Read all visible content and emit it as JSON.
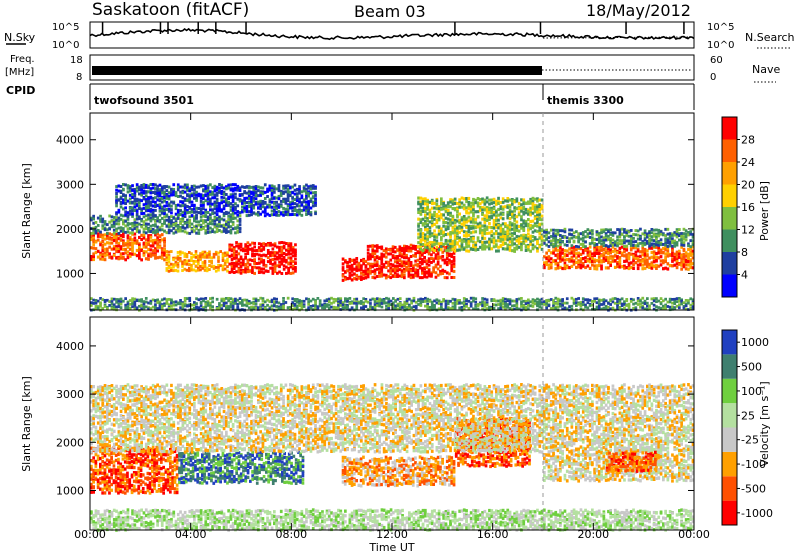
{
  "header": {
    "station": "Saskatoon (fitACF)",
    "beam": "Beam 03",
    "date": "18/May/2012"
  },
  "noise_panel": {
    "left_label": "N.Sky",
    "right_label": "N.Search",
    "tick_top": "10^5",
    "tick_bottom": "10^0"
  },
  "freq_panel": {
    "label_line1": "Freq.",
    "label_line2": "[MHz]",
    "freq_top": "18",
    "freq_bottom": "8",
    "nave_label": "Nave",
    "nave_top": "60",
    "nave_bottom": "0"
  },
  "cpid_panel": {
    "label": "CPID",
    "modes": [
      {
        "name": "twofsound 3501",
        "start_hour": 0,
        "end_hour": 18
      },
      {
        "name": "themis 3300",
        "start_hour": 18,
        "end_hour": 24
      }
    ]
  },
  "colors": {
    "power": [
      "#0000ff",
      "#1f3fa0",
      "#3f8f5f",
      "#7fbf3f",
      "#ffd000",
      "#ffa000",
      "#ff6000",
      "#ff0000"
    ],
    "velocity": [
      "#ff0000",
      "#ff5000",
      "#ffa000",
      "#c8c8c8",
      "#b4e0a0",
      "#6fcf3f",
      "#3f7f6f",
      "#2040c0"
    ]
  },
  "power_scale": {
    "label": "Power [dB]",
    "ticks": [
      "4",
      "8",
      "12",
      "16",
      "20",
      "24",
      "28"
    ]
  },
  "velocity_scale": {
    "label": "Velocity [m s⁻¹]",
    "ticks": [
      "-1000",
      "-500",
      "-100",
      "-25",
      "25",
      "100",
      "500",
      "1000"
    ]
  },
  "chart_data": {
    "type": "heatmap",
    "xlabel": "Time UT",
    "x_ticks": [
      "00:00",
      "04:00",
      "08:00",
      "12:00",
      "16:00",
      "20:00",
      "00:00"
    ],
    "xlim_hours": [
      0,
      24
    ],
    "ylabel": "Slant Range [km]",
    "y_ticks": [
      "1000",
      "2000",
      "3000",
      "4000"
    ],
    "ylim_km": [
      180,
      4600
    ],
    "mode_change_hour": 18,
    "panels": [
      {
        "quantity": "Power",
        "scale": "power_scale",
        "features": [
          {
            "t0": 0.0,
            "t1": 3.0,
            "r0": 1300,
            "r1": 1900,
            "level": 6
          },
          {
            "t0": 3.0,
            "t1": 5.5,
            "r0": 1050,
            "r1": 1500,
            "level": 5
          },
          {
            "t0": 5.5,
            "t1": 8.2,
            "r0": 1000,
            "r1": 1700,
            "level": 7
          },
          {
            "t0": 10.0,
            "t1": 11.0,
            "r0": 850,
            "r1": 1350,
            "level": 7
          },
          {
            "t0": 11.0,
            "t1": 14.5,
            "r0": 900,
            "r1": 1650,
            "level": 7
          },
          {
            "t0": 0.0,
            "t1": 6.0,
            "r0": 1900,
            "r1": 2300,
            "level": 2
          },
          {
            "t0": 1.0,
            "t1": 9.0,
            "r0": 2300,
            "r1": 3000,
            "level": 1
          },
          {
            "t0": 13.0,
            "t1": 18.0,
            "r0": 1500,
            "r1": 2700,
            "level": 3
          },
          {
            "t0": 18.0,
            "t1": 24.0,
            "r0": 1100,
            "r1": 1600,
            "level": 6
          },
          {
            "t0": 18.0,
            "t1": 24.0,
            "r0": 1600,
            "r1": 2000,
            "level": 2
          },
          {
            "t0": 0.0,
            "t1": 24.0,
            "r0": 180,
            "r1": 450,
            "level": 2
          }
        ]
      },
      {
        "quantity": "Velocity",
        "scale": "velocity_scale",
        "features": [
          {
            "t0": 0.0,
            "t1": 3.5,
            "r0": 950,
            "r1": 1900,
            "level": 1
          },
          {
            "t0": 3.5,
            "t1": 8.5,
            "r0": 1150,
            "r1": 1800,
            "level": 6
          },
          {
            "t0": 10.0,
            "t1": 14.5,
            "r0": 1100,
            "r1": 1700,
            "level": 2
          },
          {
            "t0": 14.5,
            "t1": 17.5,
            "r0": 1500,
            "r1": 2500,
            "level": 1
          },
          {
            "t0": 0.0,
            "t1": 24.0,
            "r0": 1800,
            "r1": 3200,
            "level": 3
          },
          {
            "t0": 18.0,
            "t1": 24.0,
            "r0": 1200,
            "r1": 1800,
            "level": 3
          },
          {
            "t0": 20.5,
            "t1": 22.5,
            "r0": 1400,
            "r1": 1800,
            "level": 1
          },
          {
            "t0": 0.0,
            "t1": 24.0,
            "r0": 180,
            "r1": 600,
            "level": 4
          }
        ]
      }
    ]
  }
}
